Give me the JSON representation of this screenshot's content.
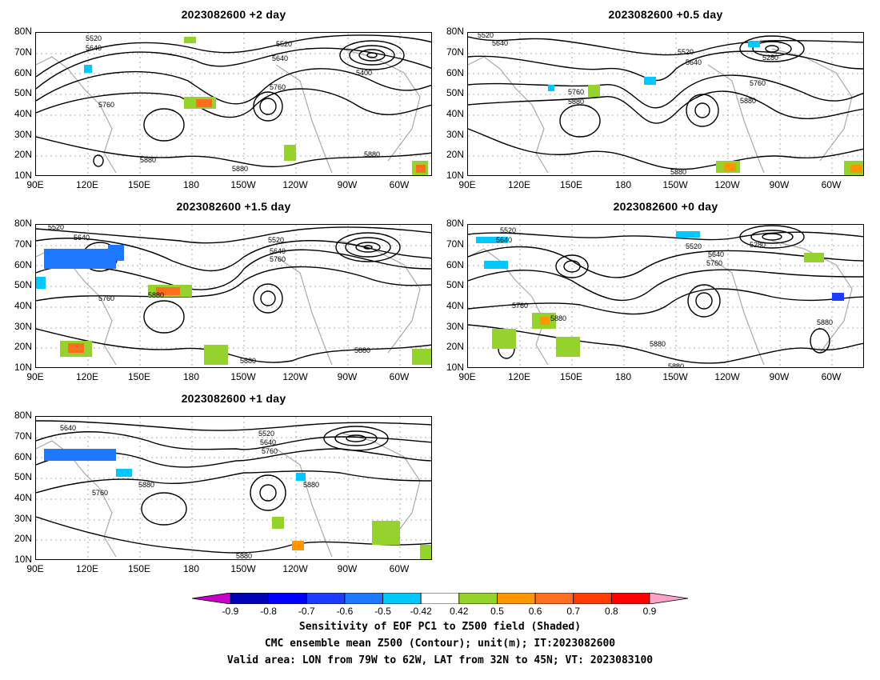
{
  "panels": [
    {
      "title": "2023082600  +2 day"
    },
    {
      "title": "2023082600  +0.5 day"
    },
    {
      "title": "2023082600  +1.5 day"
    },
    {
      "title": "2023082600  +0 day"
    },
    {
      "title": "2023082600  +1 day"
    }
  ],
  "lat_ticks": [
    "80N",
    "70N",
    "60N",
    "50N",
    "40N",
    "30N",
    "20N",
    "10N"
  ],
  "lon_ticks": [
    "90E",
    "120E",
    "150E",
    "180",
    "150W",
    "120W",
    "90W",
    "60W"
  ],
  "contour_labels": {
    "p0": [
      "5520",
      "5640",
      "5520",
      "5640",
      "5760",
      "5400",
      "5760",
      "5880",
      "5880",
      "5880"
    ],
    "p1": [
      "5520",
      "5640",
      "5520",
      "5640",
      "5280",
      "5760",
      "5760",
      "5880",
      "5880",
      "5880"
    ],
    "p2": [
      "5520",
      "5640",
      "5520",
      "5640",
      "5760",
      "5760",
      "5880",
      "5880",
      "5880"
    ],
    "p3": [
      "5520",
      "5640",
      "5520",
      "5280",
      "5640",
      "5760",
      "5760",
      "5880",
      "5880",
      "5880",
      "5880"
    ],
    "p4": [
      "5640",
      "5520",
      "5640",
      "5760",
      "5760",
      "5880",
      "5880",
      "5880"
    ]
  },
  "colorbar": {
    "labels": [
      "-0.9",
      "-0.8",
      "-0.7",
      "-0.6",
      "-0.5",
      "-0.42",
      "0.42",
      "0.5",
      "0.6",
      "0.7",
      "0.8",
      "0.9"
    ],
    "colors": [
      "#c800c8",
      "#0000b4",
      "#0000ff",
      "#1e3cff",
      "#1e78ff",
      "#00c8ff",
      "#ffffff",
      "#96d22d",
      "#ff9600",
      "#ff6e1e",
      "#ff3c00",
      "#ff0000",
      "#ffa0c8"
    ]
  },
  "captions": [
    "Sensitivity of EOF PC1 to Z500 field (Shaded)",
    "CMC ensemble mean Z500 (Contour); unit(m); IT:2023082600",
    "Valid area: LON from 79W to 62W, LAT from 32N to 45N; VT: 2023083100"
  ]
}
